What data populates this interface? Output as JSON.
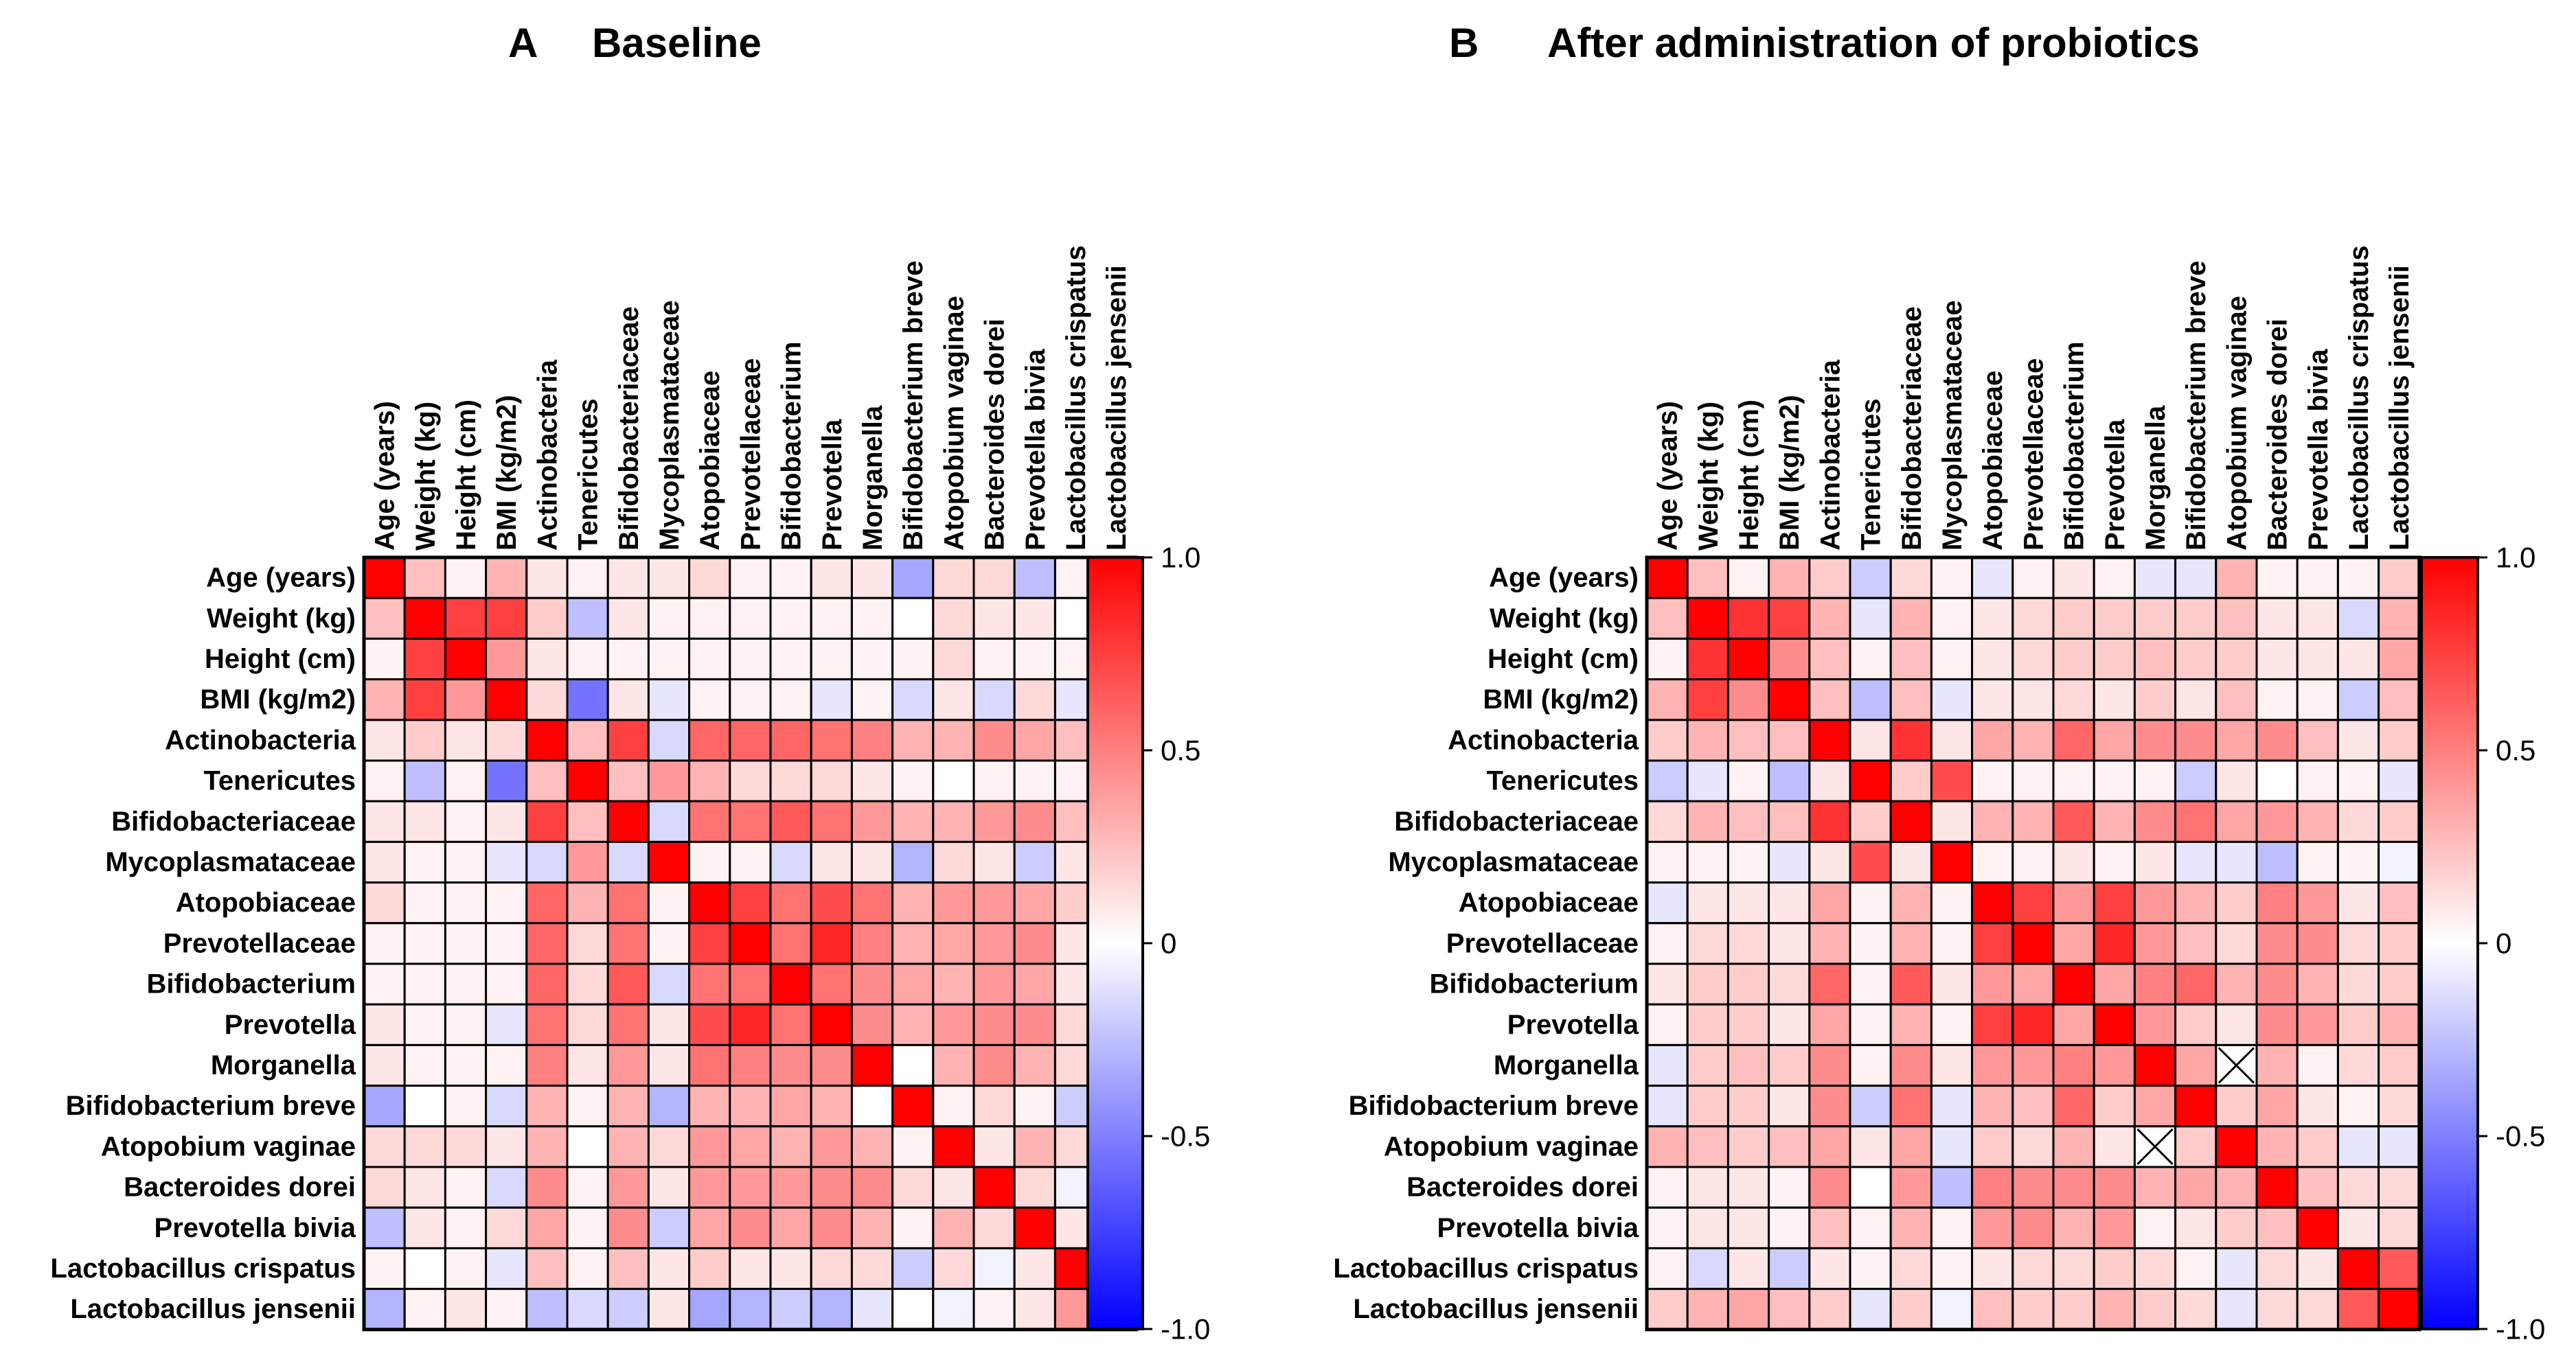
{
  "chart_data": [
    {
      "type": "heatmap",
      "panel_letter": "A",
      "title": "Baseline",
      "labels": [
        "Age (years)",
        "Weight (kg)",
        "Height (cm)",
        "BMI (kg/m2)",
        "Actinobacteria",
        "Tenericutes",
        "Bifidobacteriaceae",
        "Mycoplasmataceae",
        "Atopobiaceae",
        "Prevotellaceae",
        "Bifidobacterium",
        "Prevotella",
        "Morganella",
        "Bifidobacterium breve",
        "Atopobium vaginae",
        "Bacteroides dorei",
        "Prevotella bivia",
        "Lactobacillus crispatus",
        "Lactobacillus jensenii"
      ],
      "colorbar": {
        "min": -1.0,
        "max": 1.0,
        "ticks": [
          "1.0",
          "0.5",
          "0",
          "-0.5",
          "-1.0"
        ]
      },
      "missing": [],
      "values": [
        [
          1.0,
          0.25,
          0.05,
          0.3,
          0.1,
          0.05,
          0.1,
          0.1,
          0.15,
          0.05,
          0.05,
          0.1,
          0.1,
          -0.35,
          0.15,
          0.15,
          -0.25,
          0.05,
          -0.3
        ],
        [
          0.25,
          1.0,
          0.75,
          0.75,
          0.2,
          -0.25,
          0.1,
          0.05,
          0.05,
          0.05,
          0.05,
          0.05,
          0.05,
          0.0,
          0.15,
          0.1,
          0.1,
          0.0,
          0.05
        ],
        [
          0.05,
          0.75,
          1.0,
          0.4,
          0.1,
          0.05,
          0.05,
          0.05,
          0.05,
          0.05,
          0.05,
          0.05,
          0.05,
          0.05,
          0.15,
          0.05,
          0.05,
          0.05,
          0.1
        ],
        [
          0.3,
          0.75,
          0.4,
          1.0,
          0.15,
          -0.55,
          0.1,
          -0.1,
          0.05,
          0.05,
          0.05,
          -0.1,
          0.05,
          -0.15,
          0.1,
          -0.15,
          0.15,
          -0.1,
          0.05
        ],
        [
          0.1,
          0.2,
          0.1,
          0.15,
          1.0,
          0.25,
          0.75,
          -0.15,
          0.6,
          0.6,
          0.6,
          0.55,
          0.5,
          0.3,
          0.3,
          0.45,
          0.35,
          0.25,
          -0.25
        ],
        [
          0.05,
          -0.25,
          0.05,
          -0.55,
          0.25,
          1.0,
          0.25,
          0.4,
          0.3,
          0.15,
          0.15,
          0.15,
          0.1,
          0.05,
          0.0,
          0.05,
          0.05,
          0.05,
          -0.15
        ],
        [
          0.1,
          0.1,
          0.05,
          0.1,
          0.75,
          0.25,
          1.0,
          -0.15,
          0.55,
          0.55,
          0.65,
          0.55,
          0.4,
          0.3,
          0.3,
          0.4,
          0.45,
          0.25,
          -0.2
        ],
        [
          0.1,
          0.05,
          0.05,
          -0.1,
          -0.15,
          0.4,
          -0.15,
          1.0,
          0.05,
          0.05,
          -0.15,
          0.1,
          0.1,
          -0.3,
          0.15,
          0.1,
          -0.2,
          0.1,
          0.1
        ],
        [
          0.15,
          0.05,
          0.05,
          0.05,
          0.6,
          0.3,
          0.55,
          0.05,
          1.0,
          0.75,
          0.55,
          0.7,
          0.55,
          0.3,
          0.4,
          0.4,
          0.35,
          0.2,
          -0.35
        ],
        [
          0.05,
          0.05,
          0.05,
          0.05,
          0.6,
          0.15,
          0.55,
          0.05,
          0.75,
          1.0,
          0.55,
          0.85,
          0.5,
          0.3,
          0.35,
          0.4,
          0.45,
          0.1,
          -0.3
        ],
        [
          0.05,
          0.05,
          0.05,
          0.05,
          0.6,
          0.15,
          0.65,
          -0.15,
          0.55,
          0.55,
          1.0,
          0.55,
          0.45,
          0.35,
          0.3,
          0.4,
          0.35,
          0.1,
          -0.2
        ],
        [
          0.1,
          0.05,
          0.05,
          -0.1,
          0.55,
          0.15,
          0.55,
          0.1,
          0.7,
          0.85,
          0.55,
          1.0,
          0.45,
          0.3,
          0.4,
          0.45,
          0.45,
          0.15,
          -0.3
        ],
        [
          0.1,
          0.05,
          0.05,
          0.05,
          0.5,
          0.1,
          0.4,
          0.1,
          0.55,
          0.5,
          0.45,
          0.45,
          1.0,
          0.0,
          0.3,
          0.45,
          0.3,
          0.15,
          -0.1
        ],
        [
          -0.35,
          0.0,
          0.05,
          -0.15,
          0.3,
          0.05,
          0.3,
          -0.3,
          0.3,
          0.3,
          0.35,
          0.3,
          0.0,
          1.0,
          0.05,
          0.15,
          0.05,
          -0.2,
          0.0
        ],
        [
          0.15,
          0.15,
          0.15,
          0.1,
          0.3,
          0.0,
          0.3,
          0.15,
          0.4,
          0.35,
          0.3,
          0.4,
          0.3,
          0.05,
          1.0,
          0.1,
          0.3,
          0.15,
          -0.05
        ],
        [
          0.15,
          0.1,
          0.05,
          -0.15,
          0.45,
          0.05,
          0.4,
          0.1,
          0.4,
          0.4,
          0.4,
          0.45,
          0.45,
          0.15,
          0.1,
          1.0,
          0.15,
          -0.05,
          0.05
        ],
        [
          -0.25,
          0.1,
          0.05,
          0.15,
          0.35,
          0.05,
          0.45,
          -0.2,
          0.35,
          0.45,
          0.35,
          0.45,
          0.3,
          0.05,
          0.3,
          0.15,
          1.0,
          0.1,
          0.1
        ],
        [
          0.05,
          0.0,
          0.05,
          -0.1,
          0.25,
          0.05,
          0.25,
          0.1,
          0.2,
          0.1,
          0.1,
          0.15,
          0.15,
          -0.2,
          0.15,
          -0.05,
          0.1,
          1.0,
          0.4
        ],
        [
          -0.3,
          0.05,
          0.1,
          0.05,
          -0.25,
          -0.15,
          -0.2,
          0.1,
          -0.35,
          -0.3,
          -0.2,
          -0.3,
          -0.1,
          0.0,
          -0.05,
          0.05,
          0.1,
          0.4,
          1.0
        ]
      ]
    },
    {
      "type": "heatmap",
      "panel_letter": "B",
      "title": "After administration of probiotics",
      "labels": [
        "Age (years)",
        "Weight (kg)",
        "Height (cm)",
        "BMI (kg/m2)",
        "Actinobacteria",
        "Tenericutes",
        "Bifidobacteriaceae",
        "Mycoplasmataceae",
        "Atopobiaceae",
        "Prevotellaceae",
        "Bifidobacterium",
        "Prevotella",
        "Morganella",
        "Bifidobacterium breve",
        "Atopobium vaginae",
        "Bacteroides dorei",
        "Prevotella bivia",
        "Lactobacillus crispatus",
        "Lactobacillus jensenii"
      ],
      "colorbar": {
        "min": -1.0,
        "max": 1.0,
        "ticks": [
          "1.0",
          "0.5",
          "0",
          "-0.5",
          "-1.0"
        ]
      },
      "missing": [
        [
          12,
          14
        ],
        [
          14,
          12
        ]
      ],
      "values": [
        [
          1.0,
          0.25,
          0.05,
          0.3,
          0.2,
          -0.2,
          0.15,
          0.05,
          -0.1,
          0.05,
          0.1,
          0.05,
          -0.1,
          -0.1,
          0.3,
          0.05,
          0.05,
          0.05,
          0.2
        ],
        [
          0.25,
          1.0,
          0.8,
          0.75,
          0.3,
          -0.1,
          0.3,
          0.05,
          0.1,
          0.15,
          0.2,
          0.2,
          0.2,
          0.2,
          0.25,
          0.1,
          0.1,
          -0.15,
          0.3
        ],
        [
          0.05,
          0.8,
          1.0,
          0.45,
          0.25,
          0.05,
          0.25,
          0.05,
          0.1,
          0.15,
          0.2,
          0.2,
          0.25,
          0.2,
          0.2,
          0.1,
          0.1,
          0.1,
          0.35
        ],
        [
          0.3,
          0.75,
          0.45,
          1.0,
          0.25,
          -0.25,
          0.25,
          -0.1,
          0.1,
          0.1,
          0.15,
          0.1,
          0.2,
          0.1,
          0.25,
          0.05,
          0.05,
          -0.2,
          0.25
        ],
        [
          0.2,
          0.3,
          0.25,
          0.25,
          1.0,
          0.1,
          0.8,
          0.1,
          0.35,
          0.3,
          0.6,
          0.35,
          0.45,
          0.45,
          0.35,
          0.45,
          0.25,
          0.1,
          0.2
        ],
        [
          -0.2,
          -0.1,
          0.05,
          -0.25,
          0.1,
          1.0,
          0.2,
          0.7,
          0.05,
          0.05,
          0.05,
          0.05,
          0.05,
          -0.2,
          0.1,
          0.0,
          0.05,
          0.05,
          -0.1
        ],
        [
          0.15,
          0.3,
          0.25,
          0.25,
          0.8,
          0.2,
          1.0,
          0.1,
          0.3,
          0.3,
          0.65,
          0.3,
          0.45,
          0.55,
          0.35,
          0.4,
          0.3,
          0.15,
          0.2
        ],
        [
          0.05,
          0.05,
          0.05,
          -0.1,
          0.1,
          0.7,
          0.1,
          1.0,
          0.05,
          0.05,
          0.1,
          0.05,
          0.1,
          -0.1,
          -0.1,
          -0.25,
          0.05,
          0.05,
          -0.05
        ],
        [
          -0.1,
          0.1,
          0.1,
          0.1,
          0.35,
          0.05,
          0.3,
          0.05,
          1.0,
          0.75,
          0.4,
          0.75,
          0.4,
          0.3,
          0.2,
          0.5,
          0.4,
          0.1,
          0.25
        ],
        [
          0.05,
          0.15,
          0.15,
          0.1,
          0.3,
          0.05,
          0.3,
          0.05,
          0.75,
          1.0,
          0.35,
          0.85,
          0.4,
          0.25,
          0.15,
          0.45,
          0.45,
          0.15,
          0.2
        ],
        [
          0.1,
          0.2,
          0.2,
          0.15,
          0.6,
          0.05,
          0.65,
          0.1,
          0.4,
          0.35,
          1.0,
          0.35,
          0.5,
          0.6,
          0.3,
          0.45,
          0.3,
          0.15,
          0.2
        ],
        [
          0.05,
          0.2,
          0.2,
          0.1,
          0.35,
          0.05,
          0.3,
          0.05,
          0.75,
          0.85,
          0.35,
          1.0,
          0.4,
          0.2,
          0.1,
          0.45,
          0.4,
          0.2,
          0.3
        ],
        [
          -0.1,
          0.2,
          0.25,
          0.2,
          0.45,
          0.05,
          0.45,
          0.1,
          0.4,
          0.4,
          0.5,
          0.4,
          1.0,
          0.35,
          0.0,
          0.3,
          0.05,
          0.15,
          0.2
        ],
        [
          -0.1,
          0.2,
          0.2,
          0.1,
          0.45,
          -0.2,
          0.55,
          -0.1,
          0.3,
          0.25,
          0.6,
          0.2,
          0.35,
          1.0,
          0.2,
          0.35,
          0.1,
          0.05,
          0.15
        ],
        [
          0.3,
          0.25,
          0.2,
          0.25,
          0.35,
          0.1,
          0.35,
          -0.1,
          0.2,
          0.15,
          0.3,
          0.1,
          0.0,
          0.2,
          1.0,
          0.3,
          0.2,
          -0.1,
          -0.1
        ],
        [
          0.05,
          0.1,
          0.1,
          0.05,
          0.45,
          0.0,
          0.4,
          -0.25,
          0.5,
          0.45,
          0.45,
          0.45,
          0.3,
          0.35,
          0.3,
          1.0,
          0.25,
          0.15,
          0.15
        ],
        [
          0.05,
          0.1,
          0.1,
          0.05,
          0.25,
          0.05,
          0.3,
          0.05,
          0.4,
          0.45,
          0.3,
          0.4,
          0.05,
          0.1,
          0.2,
          0.25,
          1.0,
          0.1,
          0.15
        ],
        [
          0.05,
          -0.15,
          0.1,
          -0.2,
          0.1,
          0.05,
          0.15,
          0.05,
          0.1,
          0.15,
          0.15,
          0.2,
          0.15,
          0.05,
          -0.1,
          0.15,
          0.1,
          1.0,
          0.65
        ],
        [
          0.2,
          0.3,
          0.35,
          0.25,
          0.2,
          -0.1,
          0.2,
          -0.05,
          0.25,
          0.2,
          0.2,
          0.3,
          0.2,
          0.15,
          -0.1,
          0.15,
          0.15,
          0.65,
          1.0
        ]
      ]
    }
  ]
}
